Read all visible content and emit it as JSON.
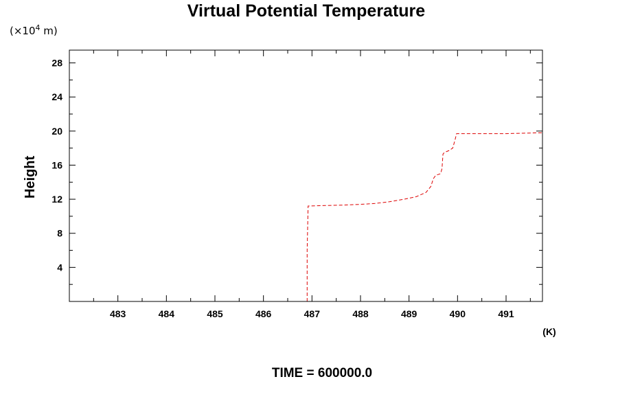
{
  "chart_data": {
    "type": "line",
    "title": "Virtual Potential Temperature",
    "y_unit_prefix": "(×10",
    "y_unit_exponent": "4",
    "y_unit_suffix": " m)",
    "ylabel": "Height",
    "xlabel": "(K)",
    "footer": "TIME = 600000.0",
    "xlim": [
      482.0,
      491.75
    ],
    "ylim": [
      0,
      29.5
    ],
    "x_ticks": [
      483,
      484,
      485,
      486,
      487,
      488,
      489,
      490,
      491
    ],
    "y_ticks": [
      4,
      8,
      12,
      16,
      20,
      24,
      28
    ],
    "x_minor_step": 0.5,
    "y_minor_step": 2,
    "line_style": "dashed",
    "line_color": "#dd0000",
    "series": [
      {
        "x": [
          486.9,
          486.9,
          486.92,
          487.2,
          487.6,
          488.0,
          488.3,
          488.6,
          488.9,
          489.15,
          489.35,
          489.45,
          489.5,
          489.55,
          489.65,
          489.68,
          489.7,
          489.73,
          489.82,
          489.9,
          489.95,
          489.98,
          490.5,
          491.0,
          491.75
        ],
        "y": [
          0.0,
          6.0,
          11.2,
          11.25,
          11.3,
          11.4,
          11.5,
          11.7,
          12.0,
          12.3,
          12.8,
          13.5,
          14.4,
          14.8,
          15.0,
          15.6,
          17.3,
          17.5,
          17.7,
          18.0,
          19.0,
          19.7,
          19.7,
          19.7,
          19.8
        ]
      }
    ]
  }
}
